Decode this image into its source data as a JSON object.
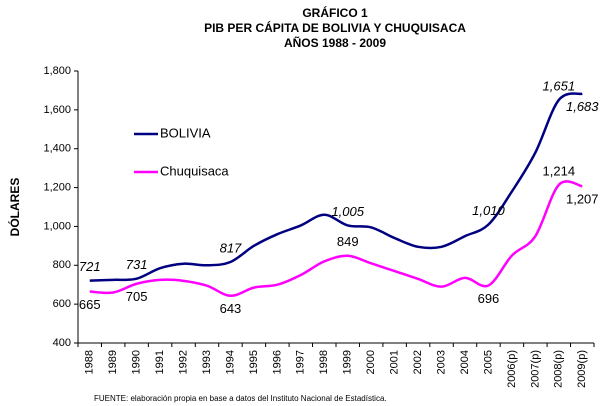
{
  "chart_data": {
    "type": "line",
    "title": "GRÁFICO 1",
    "subtitle": [
      "PIB PER CÁPITA DE BOLIVIA Y CHUQUISACA",
      "AÑOS 1988 - 2009"
    ],
    "y_label": "DÓLARES",
    "source": "FUENTE: elaboración propia en base a datos del Instituto Nacional de Estadística.",
    "categories": [
      "1988",
      "1989",
      "1990",
      "1991",
      "1992",
      "1993",
      "1994",
      "1995",
      "1996",
      "1997",
      "1998",
      "1999",
      "2000",
      "2001",
      "2002",
      "2003",
      "2004",
      "2005",
      "2006(p)",
      "2007(p)",
      "2008(p)",
      "2009(p)"
    ],
    "series": [
      {
        "name": "BOLIVIA",
        "color": "#000080",
        "values": [
          721,
          725,
          731,
          785,
          808,
          800,
          817,
          900,
          960,
          1005,
          1060,
          1005,
          995,
          940,
          895,
          895,
          950,
          1010,
          1180,
          1380,
          1651,
          1683
        ],
        "value_labels": [
          "721",
          null,
          "731",
          null,
          null,
          null,
          "817",
          null,
          null,
          null,
          null,
          "1,005",
          null,
          null,
          null,
          null,
          null,
          "1,010",
          null,
          null,
          "1,651",
          "1,683"
        ]
      },
      {
        "name": "Chuquisaca",
        "color": "#ff00ff",
        "values": [
          665,
          660,
          705,
          725,
          720,
          695,
          643,
          685,
          700,
          750,
          820,
          849,
          810,
          770,
          730,
          690,
          735,
          696,
          850,
          950,
          1214,
          1207
        ],
        "value_labels": [
          "665",
          null,
          "705",
          null,
          null,
          null,
          "643",
          null,
          null,
          null,
          null,
          "849",
          null,
          null,
          null,
          null,
          null,
          "696",
          null,
          null,
          "1,214",
          "1,207"
        ]
      }
    ],
    "ylim": [
      400,
      1800
    ],
    "yticks": [
      400,
      600,
      800,
      {
        "value": 1000,
        "label": "1,000"
      },
      {
        "value": 1200,
        "label": "1,200"
      },
      {
        "value": 1400,
        "label": "1,400"
      },
      {
        "value": 1600,
        "label": "1,600"
      },
      {
        "value": 1800,
        "label": "1,800"
      }
    ],
    "grid": false,
    "legend": "upper left"
  }
}
